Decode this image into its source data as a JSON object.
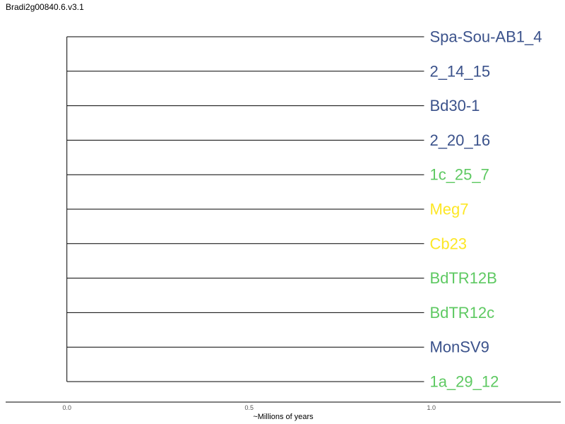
{
  "title": "Bradi2g00840.6.v3.1",
  "colors": {
    "blue": "#3b528b",
    "green": "#5ec962",
    "yellow": "#fde725",
    "branch": "#000000"
  },
  "axis": {
    "label": "~Millions of years",
    "ticks": [
      {
        "value": 0.0,
        "label": "0.0"
      },
      {
        "value": 0.5,
        "label": "0.5"
      },
      {
        "value": 1.0,
        "label": "1.0"
      }
    ],
    "range": [
      -0.168,
      1.355
    ]
  },
  "chart_data": {
    "type": "dendrogram",
    "xlabel": "~Millions of years",
    "root_depth": 0.0,
    "leaves": [
      {
        "name": "Spa-Sou-AB1_4",
        "depth": 0.98,
        "color": "blue"
      },
      {
        "name": "2_14_15",
        "depth": 0.98,
        "color": "blue"
      },
      {
        "name": "Bd30-1",
        "depth": 0.98,
        "color": "blue"
      },
      {
        "name": "2_20_16",
        "depth": 0.98,
        "color": "blue"
      },
      {
        "name": "1c_25_7",
        "depth": 0.98,
        "color": "green"
      },
      {
        "name": "Meg7",
        "depth": 0.98,
        "color": "yellow"
      },
      {
        "name": "Cb23",
        "depth": 0.98,
        "color": "yellow"
      },
      {
        "name": "BdTR12B",
        "depth": 0.98,
        "color": "green"
      },
      {
        "name": "BdTR12c",
        "depth": 0.98,
        "color": "green"
      },
      {
        "name": "MonSV9",
        "depth": 0.98,
        "color": "blue"
      },
      {
        "name": "1a_29_12",
        "depth": 0.98,
        "color": "green"
      }
    ]
  }
}
